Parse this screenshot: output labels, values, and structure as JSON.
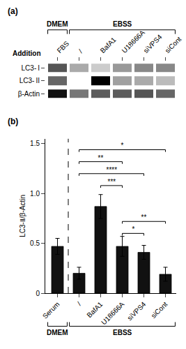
{
  "chart_data": [
    {
      "type": "heatmap",
      "title": "(a)",
      "xlabel": "Addition",
      "x": [
        "FBS",
        "/",
        "BafA1",
        "U18666A",
        "siVPS4",
        "siCont"
      ],
      "y": [
        "LC3- I",
        "LC3- II",
        "β-Actin"
      ],
      "cells": [
        [
          0.7,
          0.45,
          0.35,
          0.5,
          0.55,
          0.55
        ],
        [
          0.65,
          0.2,
          0.95,
          0.48,
          0.45,
          0.4
        ],
        [
          0.9,
          0.6,
          0.68,
          0.68,
          0.7,
          0.65
        ]
      ],
      "groups": [
        {
          "label": "DMEM",
          "categories": [
            "FBS"
          ]
        },
        {
          "label": "EBSS",
          "categories": [
            "/",
            "BafA1",
            "U18666A",
            "siVPS4",
            "siCont"
          ]
        }
      ],
      "grid": false
    },
    {
      "type": "bar",
      "title": "(b)",
      "categories": [
        "Serum",
        "/",
        "BafA1",
        "U18666A",
        "siVPS4",
        "siCont"
      ],
      "values": [
        0.47,
        0.2,
        0.87,
        0.47,
        0.41,
        0.19
      ],
      "errors": [
        0.08,
        0.06,
        0.12,
        0.1,
        0.07,
        0.07
      ],
      "color": "#111111",
      "ylabel": "LC3-Ⅱ/β-Actin",
      "ylim": [
        0,
        1.55
      ],
      "yticks": [
        0,
        0.5,
        {
          "value": 1,
          "label": "1.0"
        },
        1.5
      ],
      "groups": [
        {
          "label": "DMEM",
          "categories": [
            "Serum"
          ]
        },
        {
          "label": "EBSS",
          "categories": [
            "/",
            "BafA1",
            "U18666A",
            "siVPS4",
            "siCont"
          ]
        }
      ],
      "annotations": [
        {
          "from": "/",
          "to": "siCont",
          "y": 1.44,
          "label": "*"
        },
        {
          "from": "/",
          "to": "U18666A",
          "y": 1.32,
          "label": "**"
        },
        {
          "from": "/",
          "to": "siVPS4",
          "y": 1.2,
          "label": "****"
        },
        {
          "from": "BafA1",
          "to": "U18666A",
          "y": 1.08,
          "label": "***"
        },
        {
          "from": "U18666A",
          "to": "siCont",
          "y": 0.72,
          "label": "**"
        },
        {
          "from": "U18666A",
          "to": "siVPS4",
          "y": 0.6,
          "label": "*"
        }
      ],
      "grid": false
    }
  ]
}
